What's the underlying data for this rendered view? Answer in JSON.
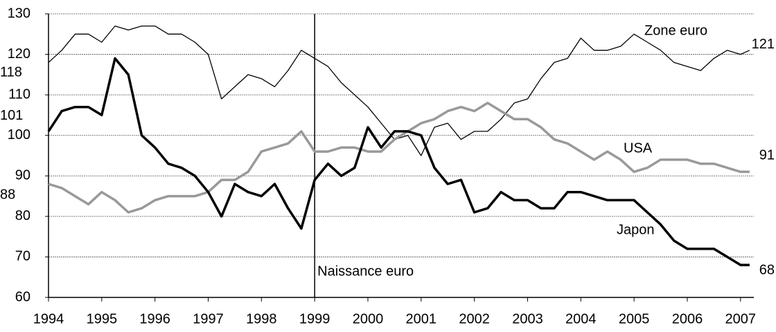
{
  "chart_data": {
    "type": "line",
    "x": [
      1994,
      1994.25,
      1994.5,
      1994.75,
      1995,
      1995.25,
      1995.5,
      1995.75,
      1996,
      1996.25,
      1996.5,
      1996.75,
      1997,
      1997.25,
      1997.5,
      1997.75,
      1998,
      1998.25,
      1998.5,
      1998.75,
      1999,
      1999.25,
      1999.5,
      1999.75,
      2000,
      2000.25,
      2000.5,
      2000.75,
      2001,
      2001.25,
      2001.5,
      2001.75,
      2002,
      2002.25,
      2002.5,
      2002.75,
      2003,
      2003.25,
      2003.5,
      2003.75,
      2004,
      2004.25,
      2004.5,
      2004.75,
      2005,
      2005.25,
      2005.5,
      2005.75,
      2006,
      2006.25,
      2006.5,
      2006.75,
      2007,
      2007.17
    ],
    "series": [
      {
        "name": "Zone euro",
        "color": "#000000",
        "start_label": "118",
        "end_label": "121",
        "values": [
          118,
          121,
          125,
          125,
          123,
          127,
          126,
          127,
          127,
          125,
          125,
          123,
          120,
          109,
          112,
          115,
          114,
          112,
          116,
          121,
          119,
          117,
          113,
          110,
          107,
          103,
          99,
          100,
          95,
          102,
          103,
          99,
          101,
          101,
          104,
          108,
          109,
          114,
          118,
          119,
          124,
          121,
          121,
          122,
          125,
          123,
          121,
          118,
          117,
          116,
          119,
          121,
          120,
          121
        ]
      },
      {
        "name": "USA",
        "color": "#999999",
        "start_label": "88",
        "end_label": "91",
        "values": [
          88,
          87,
          85,
          83,
          86,
          84,
          81,
          82,
          84,
          85,
          85,
          85,
          86,
          89,
          89,
          91,
          96,
          97,
          98,
          101,
          96,
          96,
          97,
          97,
          96,
          96,
          99,
          101,
          103,
          104,
          106,
          107,
          106,
          108,
          106,
          104,
          104,
          102,
          99,
          98,
          96,
          94,
          96,
          94,
          91,
          92,
          94,
          94,
          94,
          93,
          93,
          92,
          91,
          91
        ]
      },
      {
        "name": "Japon",
        "color": "#000000",
        "start_label": "101",
        "end_label": "68",
        "values": [
          101,
          106,
          107,
          107,
          105,
          119,
          115,
          100,
          97,
          93,
          92,
          90,
          86,
          80,
          88,
          86,
          85,
          88,
          82,
          77,
          89,
          93,
          90,
          92,
          102,
          97,
          101,
          101,
          100,
          92,
          88,
          89,
          81,
          82,
          86,
          84,
          84,
          82,
          82,
          86,
          86,
          85,
          84,
          84,
          84,
          81,
          78,
          74,
          72,
          72,
          72,
          70,
          68,
          68
        ]
      }
    ],
    "event": {
      "x": 1999,
      "label": "Naissance euro"
    },
    "xlim": [
      1994,
      2007.25
    ],
    "xticks": [
      1994,
      1995,
      1996,
      1997,
      1998,
      1999,
      2000,
      2001,
      2002,
      2003,
      2004,
      2005,
      2006,
      2007
    ],
    "ylim": [
      60,
      130
    ],
    "yticks": [
      60,
      70,
      80,
      90,
      100,
      110,
      120,
      130
    ],
    "grid": true
  }
}
